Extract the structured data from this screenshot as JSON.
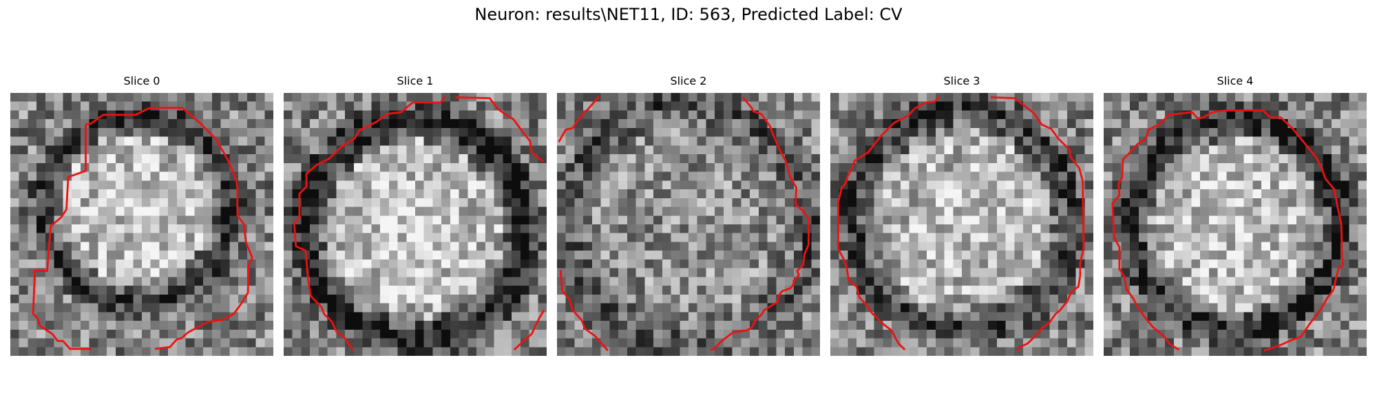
{
  "figure": {
    "title": "Neuron: results\\NET11, ID: 563, Predicted Label: CV"
  },
  "panels": [
    {
      "label": "Slice 0",
      "seed": 11,
      "center": [
        0.48,
        0.44
      ],
      "radius": 0.34,
      "ring_darkness": 0.35,
      "interior_brightness": 0.28,
      "contour_offset": [
        0.0,
        0.0
      ]
    },
    {
      "label": "Slice 1",
      "seed": 23,
      "center": [
        0.5,
        0.52
      ],
      "radius": 0.4,
      "ring_darkness": 0.45,
      "interior_brightness": 0.3,
      "contour_offset": [
        0.0,
        0.0
      ]
    },
    {
      "label": "Slice 2",
      "seed": 37,
      "center": [
        0.5,
        0.5
      ],
      "radius": 0.44,
      "ring_darkness": 0.2,
      "interior_brightness": 0.05,
      "contour_offset": [
        0.0,
        0.0
      ]
    },
    {
      "label": "Slice 3",
      "seed": 51,
      "center": [
        0.5,
        0.48
      ],
      "radius": 0.4,
      "ring_darkness": 0.3,
      "interior_brightness": 0.25,
      "contour_offset": [
        0.0,
        0.0
      ]
    },
    {
      "label": "Slice 4",
      "seed": 67,
      "center": [
        0.5,
        0.5
      ],
      "radius": 0.38,
      "ring_darkness": 0.4,
      "interior_brightness": 0.28,
      "contour_offset": [
        0.0,
        0.0
      ]
    }
  ],
  "colors": {
    "contour": "#ee1111",
    "background": "#ffffff"
  }
}
